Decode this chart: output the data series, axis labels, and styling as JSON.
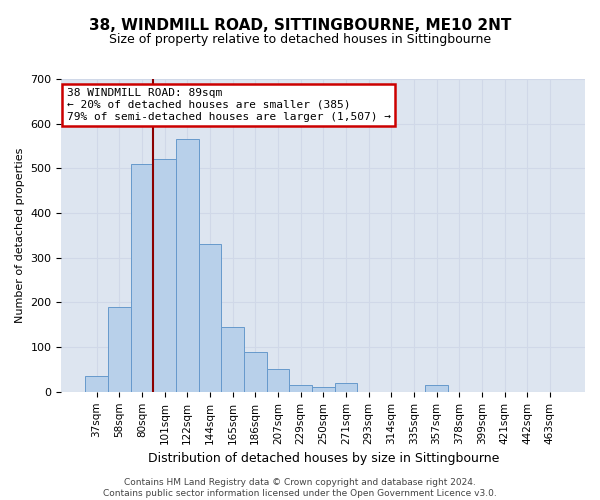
{
  "title": "38, WINDMILL ROAD, SITTINGBOURNE, ME10 2NT",
  "subtitle": "Size of property relative to detached houses in Sittingbourne",
  "xlabel": "Distribution of detached houses by size in Sittingbourne",
  "ylabel": "Number of detached properties",
  "footer": "Contains HM Land Registry data © Crown copyright and database right 2024.\nContains public sector information licensed under the Open Government Licence v3.0.",
  "categories": [
    "37sqm",
    "58sqm",
    "80sqm",
    "101sqm",
    "122sqm",
    "144sqm",
    "165sqm",
    "186sqm",
    "207sqm",
    "229sqm",
    "250sqm",
    "271sqm",
    "293sqm",
    "314sqm",
    "335sqm",
    "357sqm",
    "378sqm",
    "399sqm",
    "421sqm",
    "442sqm",
    "463sqm"
  ],
  "bar_values": [
    35,
    190,
    510,
    520,
    565,
    330,
    145,
    90,
    50,
    15,
    10,
    20,
    0,
    0,
    0,
    15,
    0,
    0,
    0,
    0,
    0
  ],
  "bar_color": "#b8d0ea",
  "bar_edge_color": "#6699cc",
  "grid_color": "#d0d8e8",
  "background_color": "#dde5f0",
  "vline_x": 2.5,
  "vline_color": "#8b0000",
  "annotation_line1": "38 WINDMILL ROAD: 89sqm",
  "annotation_line2": "← 20% of detached houses are smaller (385)",
  "annotation_line3": "79% of semi-detached houses are larger (1,507) →",
  "annotation_box_color": "#cc0000",
  "ylim": [
    0,
    700
  ],
  "yticks": [
    0,
    100,
    200,
    300,
    400,
    500,
    600,
    700
  ],
  "title_fontsize": 11,
  "subtitle_fontsize": 9,
  "ylabel_fontsize": 8,
  "xlabel_fontsize": 9,
  "tick_fontsize": 8,
  "xtick_fontsize": 7.5,
  "footer_fontsize": 6.5
}
